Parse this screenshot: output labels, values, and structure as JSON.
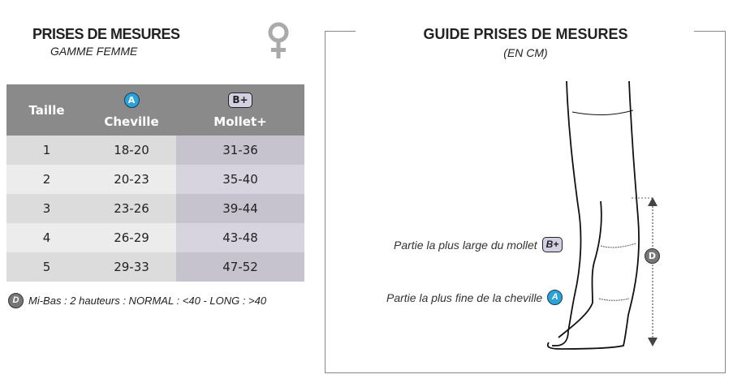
{
  "left": {
    "title": "PRISES DE MESURES",
    "subtitle": "GAMME FEMME",
    "gender_icon": "female-symbol-icon"
  },
  "table": {
    "headers": {
      "taille": "Taille",
      "cheville_badge": "A",
      "cheville": "Cheville",
      "mollet_badge": "B+",
      "mollet": "Mollet+"
    },
    "rows": [
      {
        "taille": "1",
        "cheville": "18-20",
        "mollet": "31-36"
      },
      {
        "taille": "2",
        "cheville": "20-23",
        "mollet": "35-40"
      },
      {
        "taille": "3",
        "cheville": "23-26",
        "mollet": "39-44"
      },
      {
        "taille": "4",
        "cheville": "26-29",
        "mollet": "43-48"
      },
      {
        "taille": "5",
        "cheville": "29-33",
        "mollet": "47-52"
      }
    ]
  },
  "note": {
    "badge": "D",
    "text": "Mi-Bas : 2 hauteurs : NORMAL : <40 - LONG : >40"
  },
  "guide": {
    "title": "GUIDE PRISES DE MESURES",
    "subtitle": "(EN CM)",
    "label_mollet": "Partie la plus large du mollet",
    "badge_mollet": "B+",
    "label_cheville": "Partie la plus fine de la cheville",
    "badge_cheville": "A",
    "badge_height": "D"
  },
  "colors": {
    "header": "#8a8a8a",
    "badge_a": "#2aa3d8",
    "mollet_col": "#c6c3cf"
  }
}
